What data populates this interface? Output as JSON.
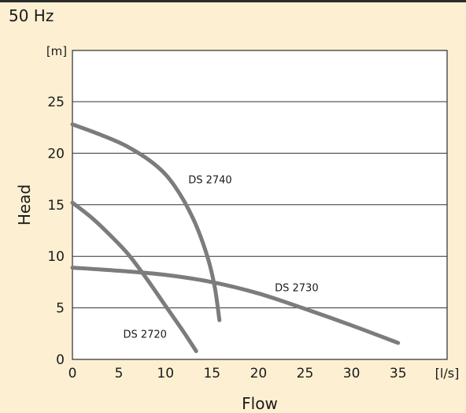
{
  "header": {
    "frequency": "50 Hz"
  },
  "chart_data": {
    "type": "line",
    "xlabel": "Flow",
    "ylabel": "Head",
    "x_unit": "[l/s]",
    "y_unit": "[m]",
    "xlim": [
      0,
      40
    ],
    "ylim": [
      0,
      30
    ],
    "x_ticks": [
      0,
      5,
      10,
      15,
      20,
      25,
      30,
      35
    ],
    "y_ticks": [
      0,
      5,
      10,
      15,
      20,
      25
    ],
    "grid": "horizontal",
    "series": [
      {
        "name": "DS 2740",
        "points": [
          [
            0,
            22.8
          ],
          [
            3,
            21.8
          ],
          [
            6,
            20.6
          ],
          [
            9,
            18.8
          ],
          [
            11,
            16.8
          ],
          [
            13,
            13.6
          ],
          [
            14.5,
            10.0
          ],
          [
            15.3,
            7.0
          ],
          [
            15.8,
            3.8
          ]
        ]
      },
      {
        "name": "DS 2730",
        "points": [
          [
            0,
            8.9
          ],
          [
            5,
            8.6
          ],
          [
            10,
            8.2
          ],
          [
            15,
            7.5
          ],
          [
            20,
            6.4
          ],
          [
            25,
            4.9
          ],
          [
            30,
            3.3
          ],
          [
            35,
            1.6
          ]
        ]
      },
      {
        "name": "DS 2720",
        "points": [
          [
            0,
            15.2
          ],
          [
            2,
            13.8
          ],
          [
            4,
            12.1
          ],
          [
            6,
            10.2
          ],
          [
            8,
            7.8
          ],
          [
            10,
            5.2
          ],
          [
            12,
            2.6
          ],
          [
            13.3,
            0.8
          ]
        ]
      }
    ],
    "annotations": [
      {
        "text": "DS 2740",
        "x": 14.8,
        "y": 17.1
      },
      {
        "text": "DS 2730",
        "x": 24.1,
        "y": 6.6
      },
      {
        "text": "DS 2720",
        "x": 7.8,
        "y": 2.1
      }
    ],
    "colors": {
      "curve": "#7c7c7c",
      "axis": "#2b2b2b",
      "background": "#fdf0d2",
      "plot": "#ffffff"
    }
  }
}
